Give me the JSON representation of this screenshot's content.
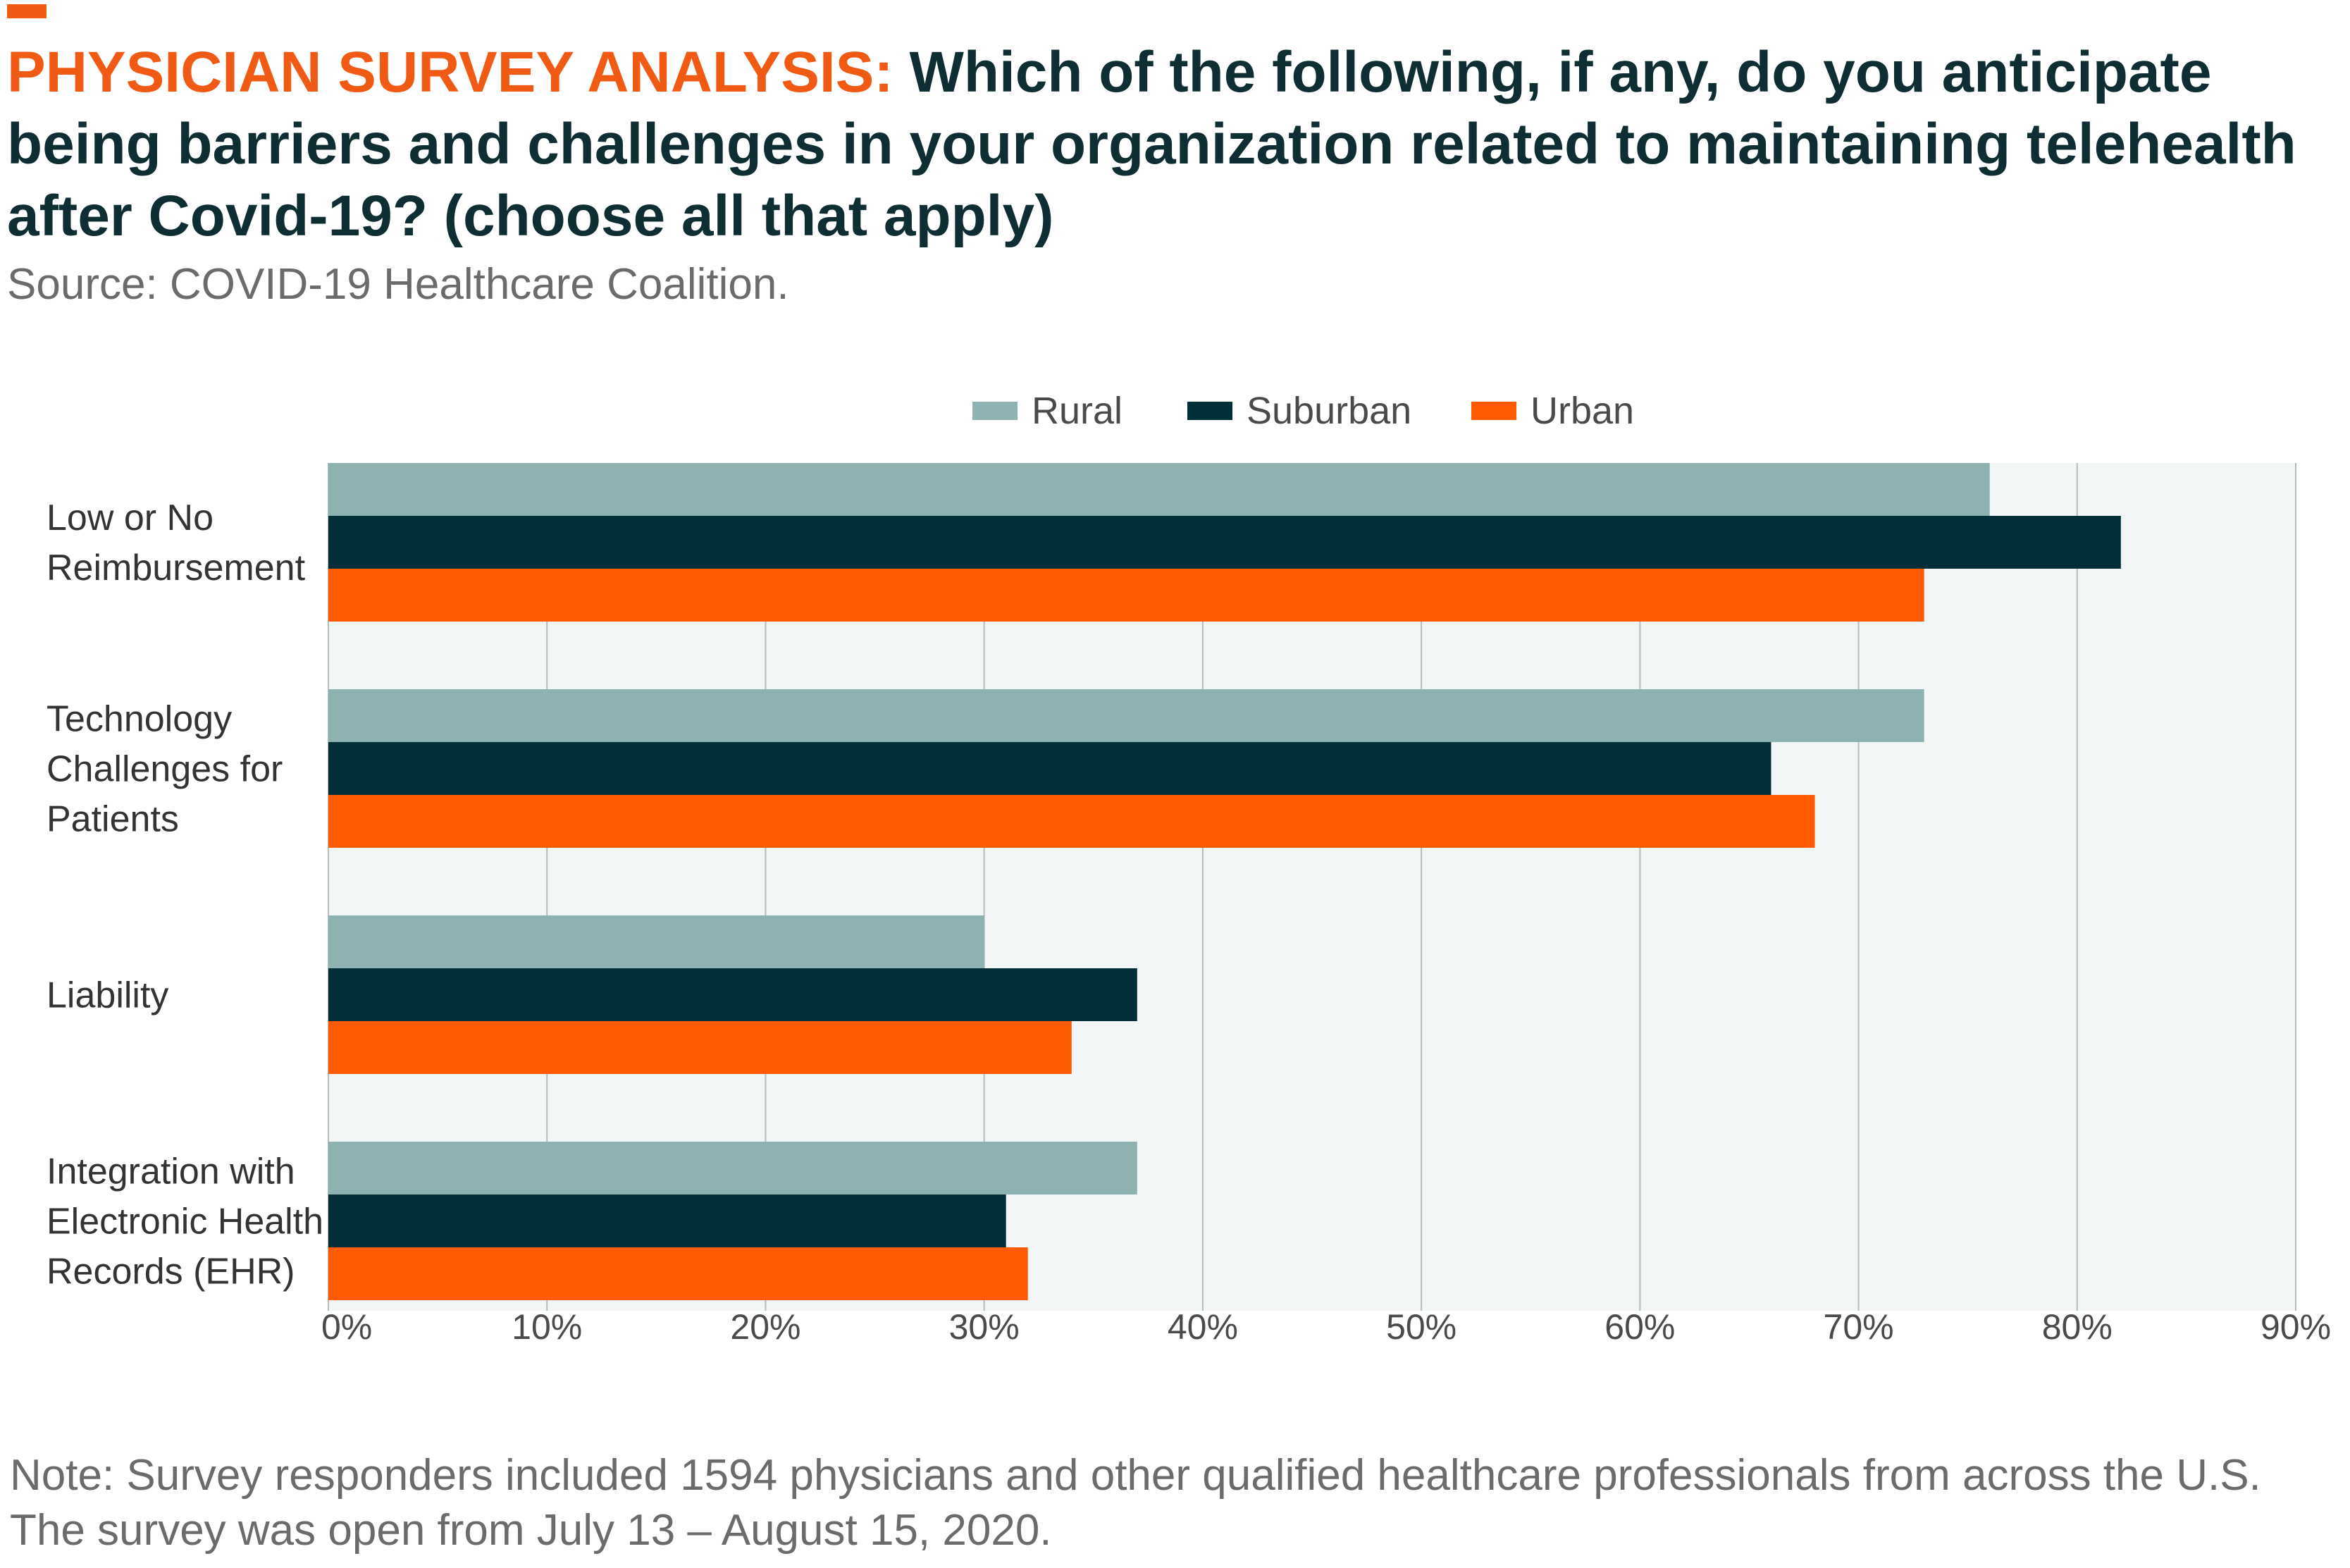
{
  "header": {
    "title_prefix": "PHYSICIAN SURVEY ANALYSIS:",
    "title_text": " Which of the following, if any, do you anticipate being barriers and challenges in your organization related to maintaining telehealth after Covid-19? (choose all that apply)",
    "source": "Source: COVID-19 Healthcare Coalition."
  },
  "footer": {
    "note": "Note: Survey responders included 1594 physicians and other qualified healthcare professionals from across the U.S. The survey was open from July 13 – August 15, 2020."
  },
  "colors": {
    "accent": "#f05a14",
    "rural": "#8eb1b1",
    "suburban": "#002f37",
    "urban": "#ff5a00",
    "plot_bg": "#f3f6f6",
    "grid": "#b5bcbc"
  },
  "chart_data": {
    "type": "bar",
    "orientation": "horizontal",
    "categories": [
      [
        "Low or No",
        "Reimbursement"
      ],
      [
        "Technology",
        "Challenges for",
        "Patients"
      ],
      [
        "Liability"
      ],
      [
        "Integration with",
        "Electronic Health",
        "Records (EHR)"
      ]
    ],
    "series": [
      {
        "name": "Rural",
        "color": "#8eb1b1",
        "values": [
          76,
          73,
          30,
          37
        ]
      },
      {
        "name": "Suburban",
        "color": "#002f37",
        "values": [
          82,
          66,
          37,
          31
        ]
      },
      {
        "name": "Urban",
        "color": "#ff5a00",
        "values": [
          73,
          68,
          34,
          32
        ]
      }
    ],
    "xlim": [
      0,
      90
    ],
    "x_ticks": [
      0,
      10,
      20,
      30,
      40,
      50,
      60,
      70,
      80,
      90
    ],
    "x_tick_labels": [
      "0%",
      "10%",
      "20%",
      "30%",
      "40%",
      "50%",
      "60%",
      "70%",
      "80%",
      "90%"
    ],
    "legend_position": "top-center",
    "grid": true
  }
}
